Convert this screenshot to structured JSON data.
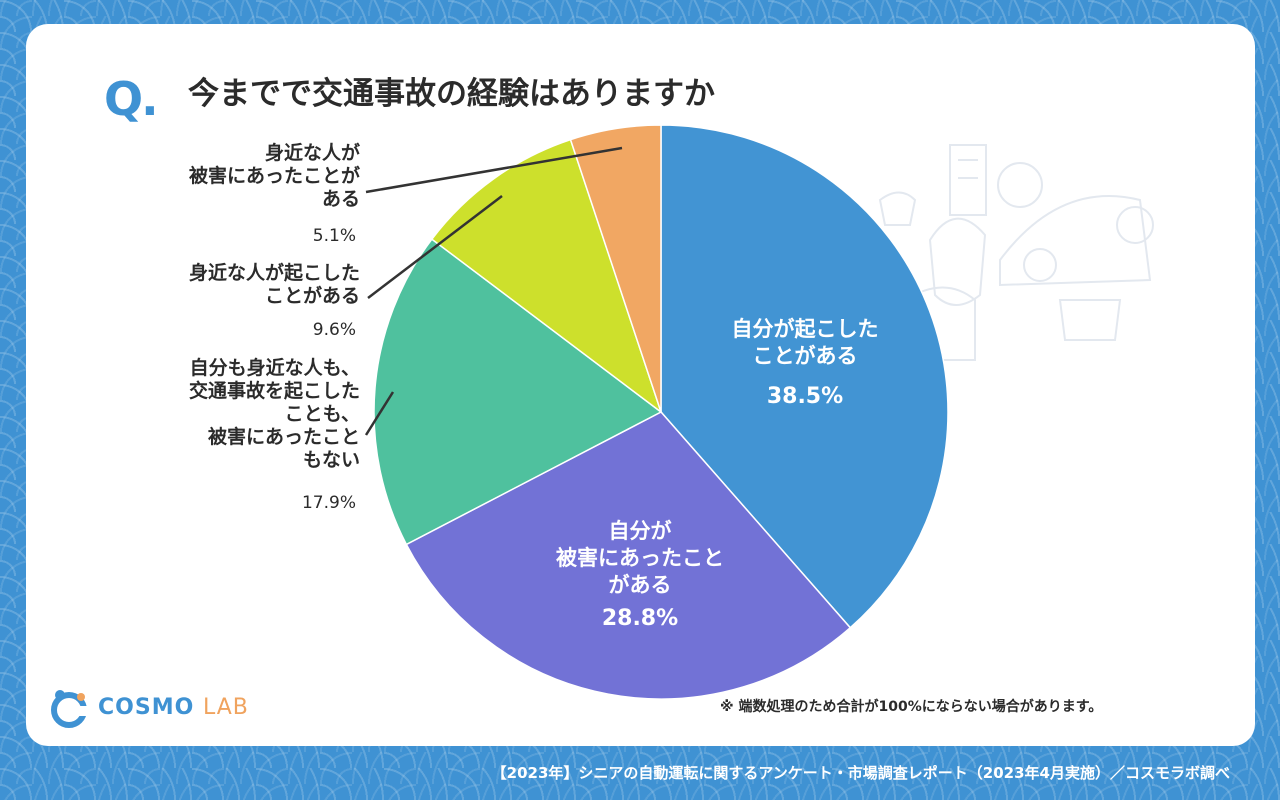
{
  "question_mark": "Q.",
  "title": "今までで交通事故の経験はありますか",
  "note": "※ 端数処理のため合計が100%にならない場合があります。",
  "logo": {
    "name_main": "COSMO",
    "name_sub": "LAB"
  },
  "footer": "【2023年】シニアの自動運転に関するアンケート・市場調査レポート（2023年4月実施）／コスモラボ調べ",
  "chart_data": {
    "type": "pie",
    "title": "今までで交通事故の経験はありますか",
    "slices": [
      {
        "lines": [
          "自分が起こした",
          "ことがある"
        ],
        "value": 38.5,
        "pct": "38.5%",
        "color": "#4294d3"
      },
      {
        "lines": [
          "自分が",
          "被害にあったこと",
          "がある"
        ],
        "value": 28.8,
        "pct": "28.8%",
        "color": "#7272d6"
      },
      {
        "lines": [
          "自分も身近な人も、",
          "交通事故を起こした",
          "ことも、",
          "被害にあったこと",
          "もない"
        ],
        "value": 17.9,
        "pct": "17.9%",
        "color": "#4fc19e"
      },
      {
        "lines": [
          "身近な人が起こした",
          "ことがある"
        ],
        "value": 9.6,
        "pct": "9.6%",
        "color": "#cde02c"
      },
      {
        "lines": [
          "身近な人が",
          "被害にあったことが",
          "ある"
        ],
        "value": 5.1,
        "pct": "5.1%",
        "color": "#f1a763"
      }
    ]
  }
}
